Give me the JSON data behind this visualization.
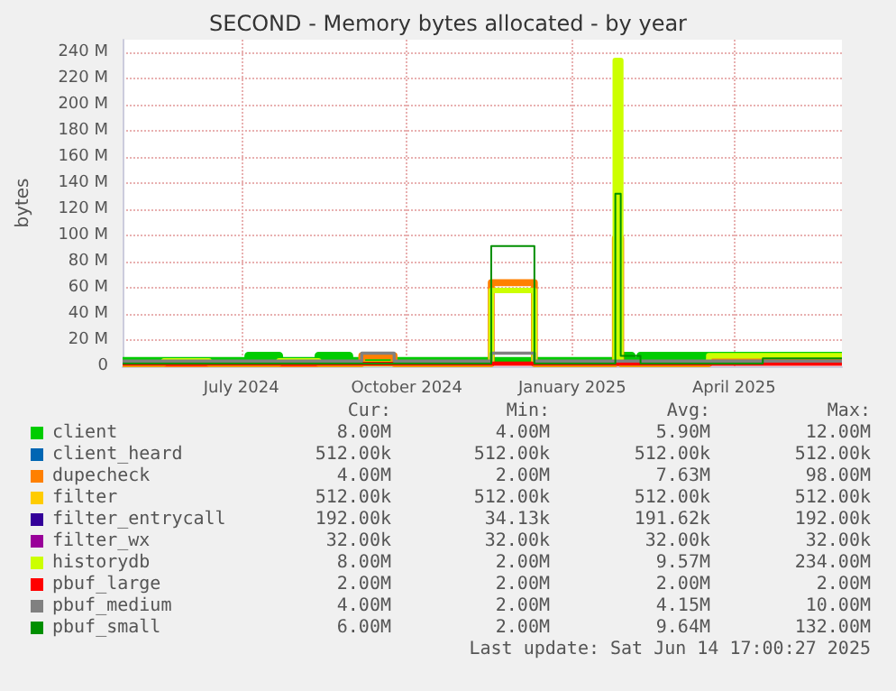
{
  "chart_data": {
    "type": "step",
    "title": "SECOND - Memory bytes allocated - by year",
    "ylabel": "bytes",
    "x": [
      "2024-04-26",
      "2024-05-19",
      "2024-06-13",
      "2024-07-05",
      "2024-07-22",
      "2024-07-28",
      "2024-08-13",
      "2024-08-30",
      "2024-09-06",
      "2024-09-16",
      "2024-09-24",
      "2024-10-16",
      "2024-11-05",
      "2024-11-17",
      "2024-12-11",
      "2024-12-25",
      "2025-01-14",
      "2025-01-22",
      "2025-01-25",
      "2025-01-28",
      "2025-02-03",
      "2025-02-08",
      "2025-02-20",
      "2025-03-18",
      "2025-04-17",
      "2025-05-31"
    ],
    "series": [
      {
        "name": "client",
        "color": "#00cc00",
        "values": [
          4,
          4,
          4,
          8,
          4,
          4,
          8,
          4,
          4,
          4,
          4,
          4,
          4,
          4,
          4,
          4,
          4,
          4,
          4,
          8,
          4,
          8,
          8,
          8,
          8,
          8
        ]
      },
      {
        "name": "client_heard",
        "color": "#0066b3",
        "values": [
          null,
          null,
          null,
          null,
          null,
          null,
          null,
          null,
          null,
          null,
          null,
          null,
          null,
          null,
          null,
          null,
          null,
          null,
          null,
          null,
          null,
          null,
          null,
          null,
          null,
          null
        ]
      },
      {
        "name": "dupecheck",
        "color": "#ff8000",
        "values": [
          2,
          2,
          2,
          2,
          2,
          2,
          2,
          2,
          8,
          8,
          2,
          2,
          2,
          64,
          2,
          2,
          2,
          2,
          98,
          2,
          2,
          2,
          2,
          4,
          4,
          4
        ]
      },
      {
        "name": "filter",
        "color": "#ffcc00",
        "values": [
          null,
          null,
          null,
          null,
          null,
          null,
          null,
          null,
          null,
          null,
          null,
          null,
          null,
          null,
          null,
          null,
          null,
          null,
          null,
          null,
          null,
          null,
          null,
          null,
          null,
          null
        ]
      },
      {
        "name": "filter_entrycall",
        "color": "#330099",
        "values": [
          null,
          null,
          null,
          null,
          null,
          null,
          null,
          null,
          null,
          null,
          null,
          null,
          null,
          null,
          null,
          null,
          null,
          null,
          null,
          null,
          null,
          null,
          null,
          null,
          null,
          null
        ]
      },
      {
        "name": "filter_wx",
        "color": "#990099",
        "values": [
          null,
          null,
          null,
          null,
          null,
          null,
          null,
          null,
          null,
          null,
          null,
          null,
          null,
          null,
          null,
          null,
          null,
          null,
          null,
          null,
          null,
          null,
          null,
          null,
          null,
          null
        ]
      },
      {
        "name": "historydb",
        "color": "#ccff00",
        "values": [
          2,
          4,
          2,
          2,
          4,
          4,
          2,
          2,
          2,
          2,
          2,
          2,
          2,
          58,
          2,
          2,
          2,
          2,
          234,
          2,
          2,
          2,
          2,
          8,
          8,
          8
        ]
      },
      {
        "name": "pbuf_large",
        "color": "#ff0000",
        "values": [
          2,
          2,
          2,
          2,
          2,
          2,
          2,
          2,
          2,
          2,
          2,
          2,
          2,
          2,
          2,
          2,
          2,
          2,
          2,
          2,
          2,
          2,
          2,
          2,
          2,
          2
        ]
      },
      {
        "name": "pbuf_medium",
        "color": "#808080",
        "values": [
          4,
          4,
          4,
          4,
          4,
          4,
          4,
          4,
          10,
          10,
          4,
          4,
          4,
          10,
          4,
          4,
          4,
          4,
          4,
          4,
          4,
          4,
          4,
          4,
          4,
          4
        ]
      },
      {
        "name": "pbuf_small",
        "color": "#008f00",
        "values": [
          2,
          2,
          2,
          2,
          2,
          2,
          2,
          2,
          2,
          2,
          2,
          2,
          2,
          92,
          2,
          2,
          2,
          2,
          132,
          8,
          8,
          2,
          2,
          2,
          6,
          6
        ]
      }
    ],
    "xlim": [
      "2024-04-26",
      "2025-05-31"
    ],
    "xticks": [
      {
        "value": "2024-07-01",
        "label": "July 2024"
      },
      {
        "value": "2024-10-01",
        "label": "October 2024"
      },
      {
        "value": "2025-01-01",
        "label": "January 2025"
      },
      {
        "value": "2025-04-01",
        "label": "April 2025"
      }
    ],
    "ylim": [
      0,
      250
    ],
    "yticks": [
      {
        "value": 0,
        "label": "0"
      },
      {
        "value": 20,
        "label": "20 M"
      },
      {
        "value": 40,
        "label": "40 M"
      },
      {
        "value": 60,
        "label": "60 M"
      },
      {
        "value": 80,
        "label": "80 M"
      },
      {
        "value": 100,
        "label": "100 M"
      },
      {
        "value": 120,
        "label": "120 M"
      },
      {
        "value": 140,
        "label": "140 M"
      },
      {
        "value": 160,
        "label": "160 M"
      },
      {
        "value": 180,
        "label": "180 M"
      },
      {
        "value": 200,
        "label": "200 M"
      },
      {
        "value": 220,
        "label": "220 M"
      },
      {
        "value": 240,
        "label": "240 M"
      }
    ],
    "grid": true,
    "legend": "bottom",
    "marker": "none",
    "line_style": "solid",
    "annotations": [
      "Cur:",
      "Min:",
      "Avg:",
      "Max:",
      "8.00M",
      "4.00M",
      "5.90M",
      "12.00M",
      "512.00k",
      "512.00k",
      "512.00k",
      "512.00k",
      "4.00M",
      "2.00M",
      "7.63M",
      "98.00M",
      "512.00k",
      "512.00k",
      "512.00k",
      "512.00k",
      "192.00k",
      "34.13k",
      "191.62k",
      "192.00k",
      "32.00k",
      "32.00k",
      "32.00k",
      "32.00k",
      "8.00M",
      "2.00M",
      "9.57M",
      "234.00M",
      "2.00M",
      "2.00M",
      "2.00M",
      "2.00M",
      "4.00M",
      "2.00M",
      "4.15M",
      "10.00M",
      "6.00M",
      "2.00M",
      "9.64M",
      "132.00M",
      "Last update: Sat Jun 14 17:00:27 2025"
    ]
  }
}
